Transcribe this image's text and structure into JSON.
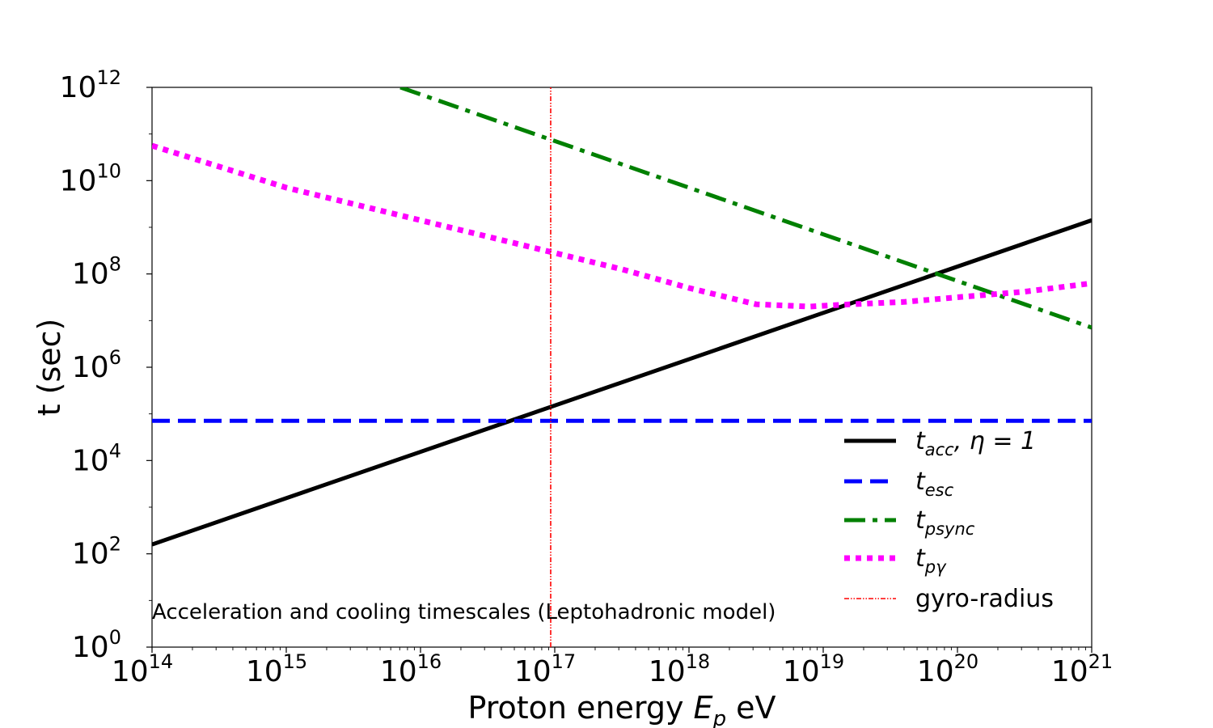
{
  "chart_data": {
    "type": "line",
    "title": "",
    "xlabel_prefix": "Proton energy ",
    "xlabel_symbol": "E",
    "xlabel_subscript": "p",
    "xlabel_suffix": " eV",
    "ylabel": "t (sec)",
    "xscale": "log",
    "yscale": "log",
    "xlim_exp": [
      14,
      21
    ],
    "ylim_exp": [
      0,
      12
    ],
    "x_ticks_exp": [
      "14",
      "15",
      "16",
      "17",
      "18",
      "19",
      "20",
      "21"
    ],
    "y_ticks_exp": [
      "0",
      "2",
      "4",
      "6",
      "8",
      "10",
      "12"
    ],
    "tick_base": "10",
    "annotation": "Acceleration and cooling timescales (Leptohadronic model)",
    "legend_position": "lower-right",
    "series": [
      {
        "key": "tacc",
        "legend": "t",
        "legend_sub": "acc",
        "legend_suffix": ", η = 1",
        "color": "#000000",
        "style": "solid",
        "points": [
          [
            14,
            2.2
          ],
          [
            21,
            9.15
          ]
        ]
      },
      {
        "key": "tesc",
        "legend": "t",
        "legend_sub": "esc",
        "legend_suffix": "",
        "color": "#0000ff",
        "style": "dashed",
        "points": [
          [
            14,
            4.85
          ],
          [
            21,
            4.85
          ]
        ]
      },
      {
        "key": "tpsync",
        "legend": "t",
        "legend_sub": "psync",
        "legend_suffix": "",
        "color": "#008000",
        "style": "dashdot",
        "points": [
          [
            15.85,
            12.0
          ],
          [
            21,
            6.85
          ]
        ]
      },
      {
        "key": "tpgamma",
        "legend": "t",
        "legend_sub": "pγ",
        "legend_suffix": "",
        "color": "#ff00ff",
        "style": "dotted",
        "points": [
          [
            14,
            10.75
          ],
          [
            14.5,
            10.3
          ],
          [
            15,
            9.85
          ],
          [
            15.5,
            9.5
          ],
          [
            16,
            9.15
          ],
          [
            16.5,
            8.8
          ],
          [
            17,
            8.45
          ],
          [
            17.5,
            8.1
          ],
          [
            18,
            7.7
          ],
          [
            18.5,
            7.35
          ],
          [
            18.9,
            7.3
          ],
          [
            19.2,
            7.35
          ],
          [
            19.6,
            7.4
          ],
          [
            20,
            7.5
          ],
          [
            20.5,
            7.62
          ],
          [
            21,
            7.8
          ]
        ]
      },
      {
        "key": "gyro",
        "legend": "gyro-radius",
        "legend_sub": "",
        "legend_suffix": "",
        "color": "#ff0000",
        "style": "dashdotdot",
        "points": [
          [
            16.97,
            0
          ],
          [
            16.97,
            12
          ]
        ]
      }
    ]
  }
}
